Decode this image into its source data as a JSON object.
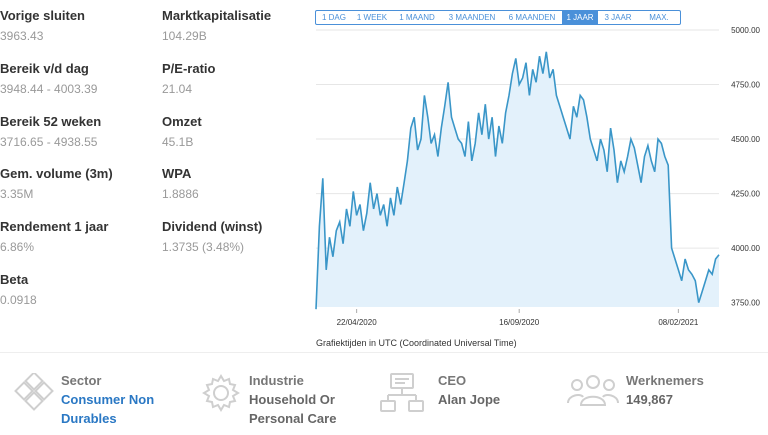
{
  "stats_left": [
    {
      "label": "Vorige sluiten",
      "value": "3963.43"
    },
    {
      "label": "Bereik v/d dag",
      "value": "3948.44 - 4003.39"
    },
    {
      "label": "Bereik 52 weken",
      "value": "3716.65 - 4938.55"
    },
    {
      "label": "Gem. volume (3m)",
      "value": "3.35M"
    },
    {
      "label": "Rendement 1 jaar",
      "value": "6.86%"
    },
    {
      "label": "Beta",
      "value": "0.0918"
    }
  ],
  "stats_right": [
    {
      "label": "Marktkapitalisatie",
      "value": "104.29B"
    },
    {
      "label": "P/E-ratio",
      "value": "21.04"
    },
    {
      "label": "Omzet",
      "value": "45.1B"
    },
    {
      "label": "WPA",
      "value": "1.8886"
    },
    {
      "label": "Dividend (winst)",
      "value": "1.3735 (3.48%)"
    }
  ],
  "range_tabs": [
    "1 DAG",
    "1 WEEK",
    "1 MAAND",
    "3 MAANDEN",
    "6 MAANDEN",
    "1 JAAR",
    "3 JAAR",
    "MAX."
  ],
  "active_tab": "1 JAAR",
  "chart_note": "Grafiektijden in UTC (Coordinated Universal Time)",
  "chart_data": {
    "type": "area",
    "y_ticks": [
      "5000.00",
      "4750.00",
      "4500.00",
      "4250.00",
      "4000.00",
      "3750.00"
    ],
    "ylim": [
      3730,
      5000
    ],
    "x_ticks": [
      "22/04/2020",
      "16/09/2020",
      "08/02/2021"
    ],
    "x_tick_index": [
      40,
      200,
      360
    ],
    "series": [
      {
        "values": [
          3720,
          4100,
          4320,
          3900,
          4050,
          3960,
          4080,
          4120,
          4020,
          4180,
          4100,
          4260,
          4150,
          4200,
          4080,
          4160,
          4300,
          4180,
          4250,
          4150,
          4200,
          4100,
          4230,
          4150,
          4280,
          4200,
          4300,
          4400,
          4550,
          4600,
          4450,
          4500,
          4700,
          4600,
          4480,
          4520,
          4420,
          4550,
          4650,
          4760,
          4600,
          4550,
          4500,
          4480,
          4420,
          4580,
          4400,
          4480,
          4620,
          4520,
          4660,
          4500,
          4600,
          4420,
          4560,
          4480,
          4620,
          4700,
          4800,
          4870,
          4750,
          4780,
          4850,
          4700,
          4820,
          4760,
          4880,
          4800,
          4900,
          4780,
          4820,
          4700,
          4650,
          4600,
          4550,
          4500,
          4650,
          4600,
          4700,
          4680,
          4600,
          4500,
          4450,
          4400,
          4500,
          4450,
          4350,
          4550,
          4450,
          4300,
          4400,
          4350,
          4420,
          4500,
          4460,
          4380,
          4300,
          4420,
          4470,
          4400,
          4350,
          4500,
          4480,
          4420,
          4380,
          4000,
          3950,
          3900,
          3850,
          3950,
          3900,
          3880,
          3850,
          3750,
          3800,
          3850,
          3900,
          3880,
          3950,
          3970
        ],
        "color": "#3a96c8"
      }
    ]
  },
  "info_cards": [
    {
      "title": "Sector",
      "value": "Consumer Non Durables",
      "line1": "Consumer Non",
      "line2": "Durables",
      "icon": "sector-icon",
      "color": "#2a78c4"
    },
    {
      "title": "Industrie",
      "value": "Household Or Personal Care",
      "line1": "Household Or",
      "line2": "Personal Care",
      "icon": "gear-icon",
      "color": "#666666"
    },
    {
      "title": "CEO",
      "value": "Alan Jope",
      "line1": "Alan Jope",
      "line2": "",
      "icon": "org-chart-icon",
      "color": "#666666"
    },
    {
      "title": "Werknemers",
      "value": "149,867",
      "line1": "149,867",
      "line2": "",
      "icon": "people-icon",
      "color": "#666666"
    }
  ]
}
